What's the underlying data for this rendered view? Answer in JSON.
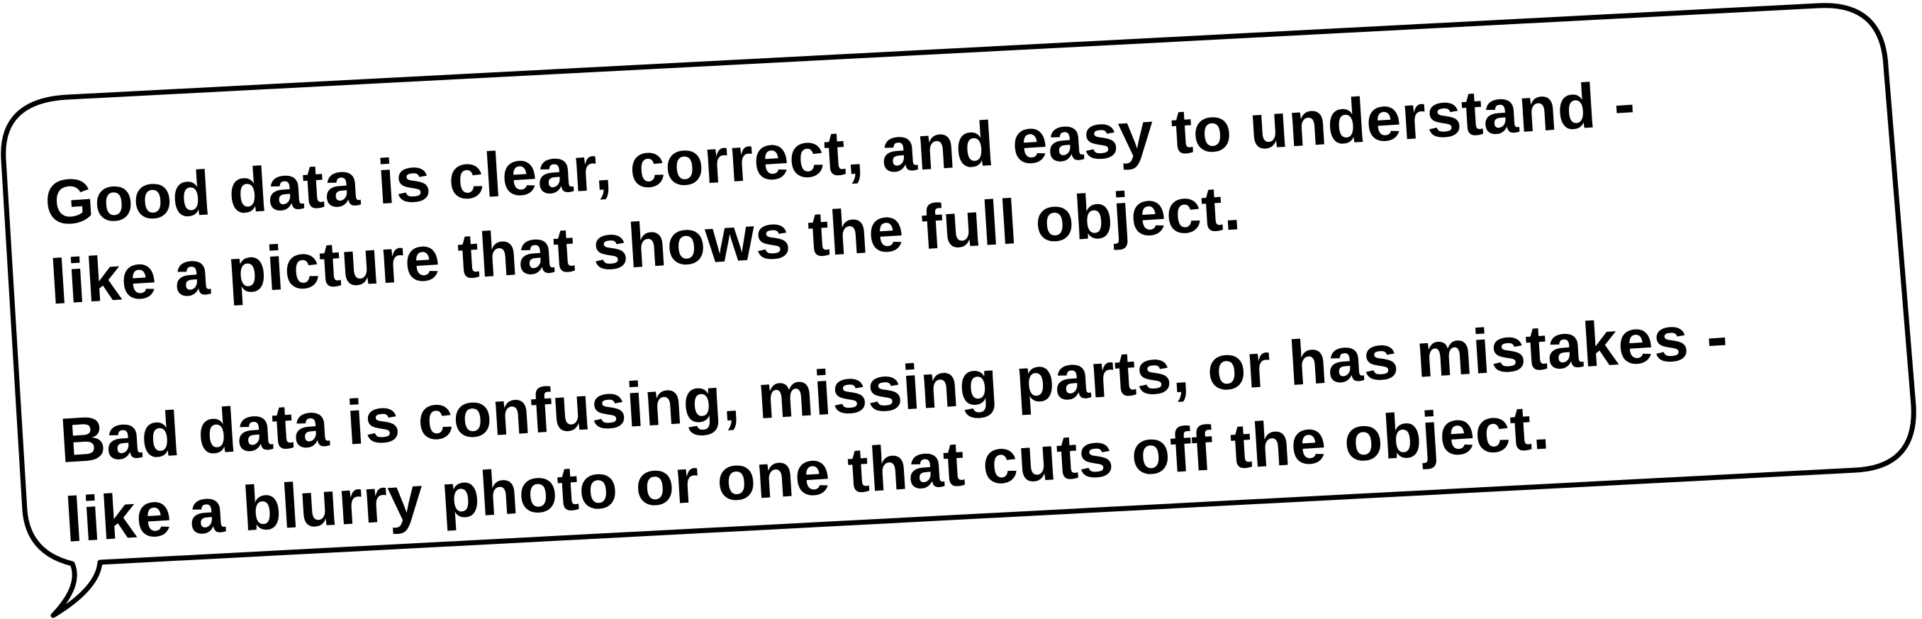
{
  "speech_bubble": {
    "paragraphs": [
      {
        "lines": [
          "Good data is clear, correct, and easy to understand -",
          "like a picture that shows the full object."
        ]
      },
      {
        "lines": [
          "Bad data is confusing, missing parts, or has mistakes -",
          "like a blurry photo or one that cuts off the object."
        ]
      }
    ],
    "colors": {
      "fill": "#ffffff",
      "stroke": "#000000",
      "text": "#000000"
    }
  }
}
